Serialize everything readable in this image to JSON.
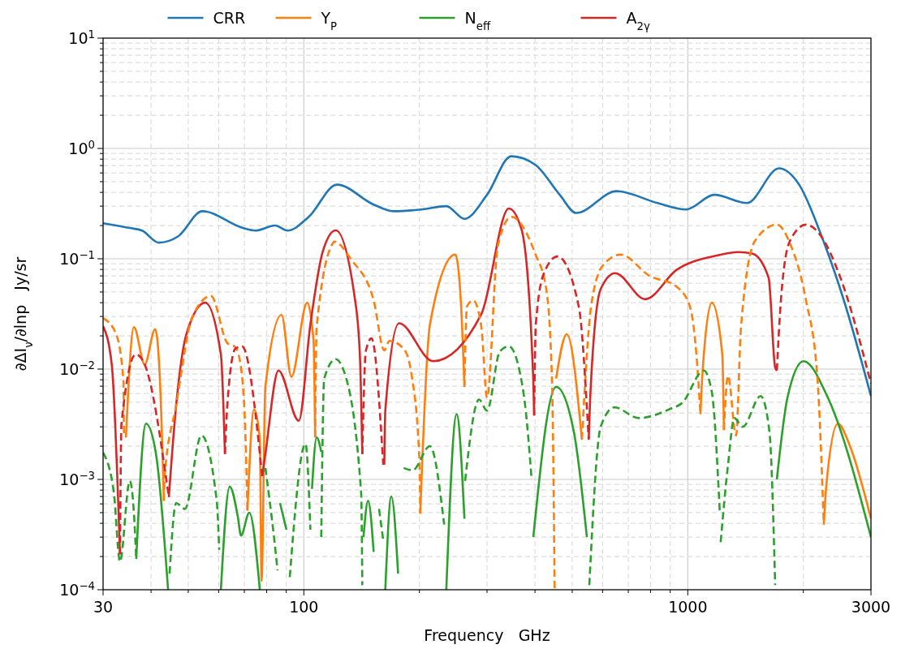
{
  "chart_data": {
    "type": "line",
    "xlabel": "Frequency   GHz",
    "ylabel": "∂ΔI$_{ν}$/∂lnp   Jy/sr",
    "log": "xy",
    "grid": true,
    "legend": "top",
    "xlim": [
      30,
      3000
    ],
    "ylim": [
      0.0001,
      10
    ],
    "xticks": [
      30,
      {
        "value": 40,
        "label": null
      },
      {
        "value": 50,
        "label": null
      },
      {
        "value": 60,
        "label": null
      },
      {
        "value": 70,
        "label": null
      },
      {
        "value": 80,
        "label": null
      },
      {
        "value": 90,
        "label": null
      },
      100,
      {
        "value": 200,
        "label": null
      },
      {
        "value": 300,
        "label": null
      },
      {
        "value": 400,
        "label": null
      },
      {
        "value": 500,
        "label": null
      },
      {
        "value": 600,
        "label": null
      },
      {
        "value": 700,
        "label": null
      },
      {
        "value": 800,
        "label": null
      },
      {
        "value": 900,
        "label": null
      },
      1000,
      {
        "value": 2000,
        "label": null
      },
      3000
    ],
    "yticks": [
      {
        "value": 0.0001,
        "label": "10$^{−4}$"
      },
      {
        "value": 0.0002,
        "label": null
      },
      {
        "value": 0.0003,
        "label": null
      },
      {
        "value": 0.0004,
        "label": null
      },
      {
        "value": 0.0005,
        "label": null
      },
      {
        "value": 0.0006,
        "label": null
      },
      {
        "value": 0.0007,
        "label": null
      },
      {
        "value": 0.0008,
        "label": null
      },
      {
        "value": 0.0009,
        "label": null
      },
      {
        "value": 0.001,
        "label": "10$^{−3}$"
      },
      {
        "value": 0.002,
        "label": null
      },
      {
        "value": 0.003,
        "label": null
      },
      {
        "value": 0.004,
        "label": null
      },
      {
        "value": 0.005,
        "label": null
      },
      {
        "value": 0.006,
        "label": null
      },
      {
        "value": 0.007,
        "label": null
      },
      {
        "value": 0.008,
        "label": null
      },
      {
        "value": 0.009,
        "label": null
      },
      {
        "value": 0.01,
        "label": "10$^{−2}$"
      },
      {
        "value": 0.02,
        "label": null
      },
      {
        "value": 0.03,
        "label": null
      },
      {
        "value": 0.04,
        "label": null
      },
      {
        "value": 0.05,
        "label": null
      },
      {
        "value": 0.06,
        "label": null
      },
      {
        "value": 0.07,
        "label": null
      },
      {
        "value": 0.08,
        "label": null
      },
      {
        "value": 0.09,
        "label": null
      },
      {
        "value": 0.1,
        "label": "10$^{−1}$"
      },
      {
        "value": 0.2,
        "label": null
      },
      {
        "value": 0.3,
        "label": null
      },
      {
        "value": 0.4,
        "label": null
      },
      {
        "value": 0.5,
        "label": null
      },
      {
        "value": 0.6,
        "label": null
      },
      {
        "value": 0.7,
        "label": null
      },
      {
        "value": 0.8,
        "label": null
      },
      {
        "value": 0.9,
        "label": null
      },
      {
        "value": 1,
        "label": "10$^{0}$"
      },
      {
        "value": 2,
        "label": null
      },
      {
        "value": 3,
        "label": null
      },
      {
        "value": 4,
        "label": null
      },
      {
        "value": 5,
        "label": null
      },
      {
        "value": 6,
        "label": null
      },
      {
        "value": 7,
        "label": null
      },
      {
        "value": 8,
        "label": null
      },
      {
        "value": 9,
        "label": null
      },
      {
        "value": 10,
        "label": "10$^{1}$"
      }
    ],
    "series": [
      {
        "name": "CRR",
        "color": "#1f77b4",
        "line_style": "solid",
        "x": [
          30,
          35.2,
          37.9,
          41.9,
          47.1,
          54.4,
          69.4,
          74.6,
          84.2,
          90.7,
          103,
          122,
          152,
          171,
          203,
          235,
          262,
          300,
          347,
          401,
          464,
          512,
          653,
          834,
          989,
          1173,
          1426,
          1728,
          1950,
          2239,
          2550,
          3000
        ],
        "values": [
          0.21,
          0.19,
          0.18,
          0.14,
          0.16,
          0.27,
          0.19,
          0.18,
          0.2,
          0.18,
          0.24,
          0.47,
          0.31,
          0.27,
          0.28,
          0.3,
          0.23,
          0.38,
          0.85,
          0.71,
          0.38,
          0.26,
          0.41,
          0.32,
          0.28,
          0.38,
          0.32,
          0.66,
          0.47,
          0.155,
          0.042,
          0.0057
        ]
      },
      {
        "name": "Y$_{P}$",
        "color": "#ff7f0e",
        "line_style": "solid",
        "x": [
          34.4,
          36.1,
          38.5,
          41,
          42.2,
          43.2,
          null,
          71.3,
          74.2,
          76.8,
          77.6,
          79.4,
          87.5,
          92.8,
          102,
          106,
          107,
          null,
          201,
          213,
          248,
          257,
          262,
          null,
          454,
          484,
          530,
          null,
          1079,
          1090,
          1155,
          1230,
          1242,
          null,
          2261,
          2294,
          2461,
          2645,
          3000
        ],
        "values": [
          0.0024,
          0.024,
          0.011,
          0.023,
          0.0078,
          0.00064,
          null,
          0.00052,
          0.0043,
          0.0023,
          0.00012,
          0.0069,
          0.031,
          0.0085,
          0.04,
          0.018,
          0.0024,
          null,
          0.00049,
          0.0254,
          0.109,
          0.0355,
          0.0069,
          null,
          0.0082,
          0.0207,
          0.0023,
          null,
          0.0039,
          0.0082,
          0.04,
          0.0136,
          0.0028,
          null,
          0.00039,
          0.00086,
          0.0032,
          0.002,
          0.00044
        ]
      },
      {
        "name": "N$_{eff}$",
        "color": "#2ca02c",
        "line_style": "solid",
        "x": [
          36.6,
          38.8,
          41.2,
          44.3,
          null,
          60.8,
          64.1,
          67.3,
          68.6,
          72.1,
          76.8,
          null,
          86.7,
          90.1,
          null,
          105,
          108,
          111,
          null,
          143,
          147,
          152,
          null,
          163,
          169,
          176,
          null,
          235,
          250,
          262,
          null,
          396,
          454,
          505,
          546,
          null,
          1706,
          1818,
          2003,
          2317,
          3000
        ],
        "values": [
          0.00019,
          0.0032,
          0.0017,
          0.0001,
          null,
          0.0001,
          0.00086,
          0.00046,
          0.00031,
          0.0005,
          0.0001,
          null,
          0.00061,
          0.00035,
          null,
          0.00082,
          0.0024,
          0.00178,
          null,
          0.0003,
          0.00064,
          0.00022,
          null,
          0.0001,
          0.0007,
          0.00014,
          null,
          0.0001,
          0.0039,
          0.00044,
          null,
          0.0003,
          0.0069,
          0.0027,
          0.0003,
          null,
          0.001,
          0.0055,
          0.0118,
          0.0055,
          0.0003
        ]
      },
      {
        "name": "A$_{2γ}$",
        "color": "#d62728",
        "line_style": "solid",
        "x": [
          30,
          31.6,
          33.2,
          null,
          44.5,
          46.5,
          49.5,
          55.4,
          60.8,
          62.3,
          null,
          77.9,
          79.4,
          85.9,
          97,
          104,
          112,
          121,
          136,
          140,
          142,
          null,
          162,
          163,
          177,
          217,
          290,
          342,
          369,
          396,
          398,
          null,
          552,
          557,
          593,
          647,
          775,
          934,
          1189,
          1356,
          1474,
          1624,
          1689,
          1706
        ],
        "values": [
          0.0245,
          0.011,
          0.00021,
          null,
          0.00069,
          0.0047,
          0.021,
          0.04,
          0.0136,
          0.0017,
          null,
          0.00107,
          0.0017,
          0.0097,
          0.0034,
          0.0254,
          0.116,
          0.181,
          0.042,
          0.0129,
          0.0017,
          null,
          0.00136,
          0.0042,
          0.026,
          0.0118,
          0.0316,
          0.286,
          0.184,
          0.0078,
          0.0038,
          null,
          0.0023,
          0.0055,
          0.053,
          0.074,
          0.043,
          0.079,
          0.107,
          0.115,
          0.111,
          0.067,
          0.0103,
          0.0097
        ]
      },
      {
        "color": "#ff7f0e",
        "line_style": "dashed",
        "x": [
          30,
          32.4,
          33.9,
          34,
          34.4,
          null,
          43.2,
          43.4,
          46.5,
          51.3,
          57.3,
          63.2,
          66.3,
          68.6,
          70.7,
          71.3,
          null,
          107,
          108,
          119,
          120,
          133,
          152,
          162,
          167,
          182,
          191,
          200,
          201,
          null,
          262,
          266,
          276,
          290,
          300,
          320,
          347,
          401,
          428,
          443,
          450,
          null,
          530,
          560,
          601,
          669,
          795,
          934,
          1013,
          1053,
          1079,
          null,
          1242,
          1273,
          1336,
          1376,
          1496,
          1706,
          1845,
          2032,
          2174,
          2261
        ],
        "values": [
          0.029,
          0.021,
          0.0078,
          0.0027,
          0.0024,
          null,
          0.00064,
          0.00107,
          0.0047,
          0.03,
          0.046,
          0.0172,
          0.0158,
          0.0103,
          0.0017,
          0.00052,
          null,
          0.0024,
          0.024,
          0.138,
          0.143,
          0.098,
          0.042,
          0.0148,
          0.018,
          0.0153,
          0.0087,
          0.0015,
          0.00049,
          null,
          0.0069,
          0.037,
          0.042,
          0.024,
          0.0055,
          0.131,
          0.24,
          0.11,
          0.053,
          0.0078,
          0.0001,
          null,
          0.0023,
          0.037,
          0.087,
          0.109,
          0.07,
          0.056,
          0.037,
          0.0136,
          0.0039,
          null,
          0.0028,
          0.0087,
          0.0025,
          0.024,
          0.145,
          0.204,
          0.138,
          0.042,
          0.0087,
          0.00039
        ]
      },
      {
        "color": "#2ca02c",
        "line_style": "dashed",
        "x": [
          30,
          32,
          33.2,
          35.2,
          36.1,
          36.6,
          null,
          44.7,
          46.5,
          49,
          54.1,
          59.3,
          60.2,
          null,
          79.4,
          83.8,
          85.4,
          null,
          91.9,
          101,
          104,
          null,
          111,
          113,
          121,
          127,
          141,
          142,
          null,
          157,
          161,
          null,
          182,
          192,
          213,
          232,
          null,
          263,
          286,
          300,
          324,
          342,
          369,
          377,
          392,
          null,
          554,
          593,
          644,
          745,
          906,
          965,
          1101,
          1155,
          1212,
          null,
          1218,
          1273,
          1322,
          1390,
          1548,
          1632,
          1689
        ],
        "values": [
          0.00175,
          0.00076,
          0.00018,
          0.00097,
          0.00049,
          0.00019,
          null,
          0.00014,
          0.00061,
          0.00054,
          0.0025,
          0.00064,
          0.00023,
          null,
          0.00127,
          0.00028,
          0.00015,
          null,
          0.00013,
          0.0021,
          0.00035,
          null,
          0.0003,
          0.0082,
          0.0123,
          0.0097,
          0.00076,
          0.00011,
          null,
          0.00054,
          0.00028,
          null,
          0.00127,
          0.00121,
          0.002,
          0.00039,
          null,
          0.00097,
          0.0053,
          0.0042,
          0.0145,
          0.0161,
          0.0078,
          0.0047,
          0.001,
          null,
          0.00011,
          0.003,
          0.0045,
          0.0036,
          0.0044,
          0.0049,
          0.0097,
          0.0062,
          0.00049,
          null,
          0.00027,
          0.00136,
          0.0036,
          0.003,
          0.0057,
          0.0027,
          0.00011
        ]
      },
      {
        "color": "#d62728",
        "line_style": "dashed",
        "x": [
          33.2,
          33.5,
          36.5,
          38.3,
          44.5,
          null,
          62.3,
          63.2,
          66.3,
          69,
          77.9,
          null,
          142,
          145,
          150,
          161,
          null,
          398,
          402,
          422,
          458,
          520,
          552,
          null,
          1706,
          1748,
          1845,
          2032,
          2239,
          2473,
          3000
        ],
        "values": [
          0.00021,
          0.0032,
          0.0136,
          0.0115,
          0.00069,
          null,
          0.0017,
          0.0047,
          0.0153,
          0.0161,
          0.00107,
          null,
          0.0017,
          0.0145,
          0.019,
          0.00136,
          null,
          0.0038,
          0.0254,
          0.074,
          0.105,
          0.037,
          0.0023,
          null,
          0.0097,
          0.042,
          0.145,
          0.204,
          0.155,
          0.074,
          0.0074
        ]
      }
    ]
  }
}
